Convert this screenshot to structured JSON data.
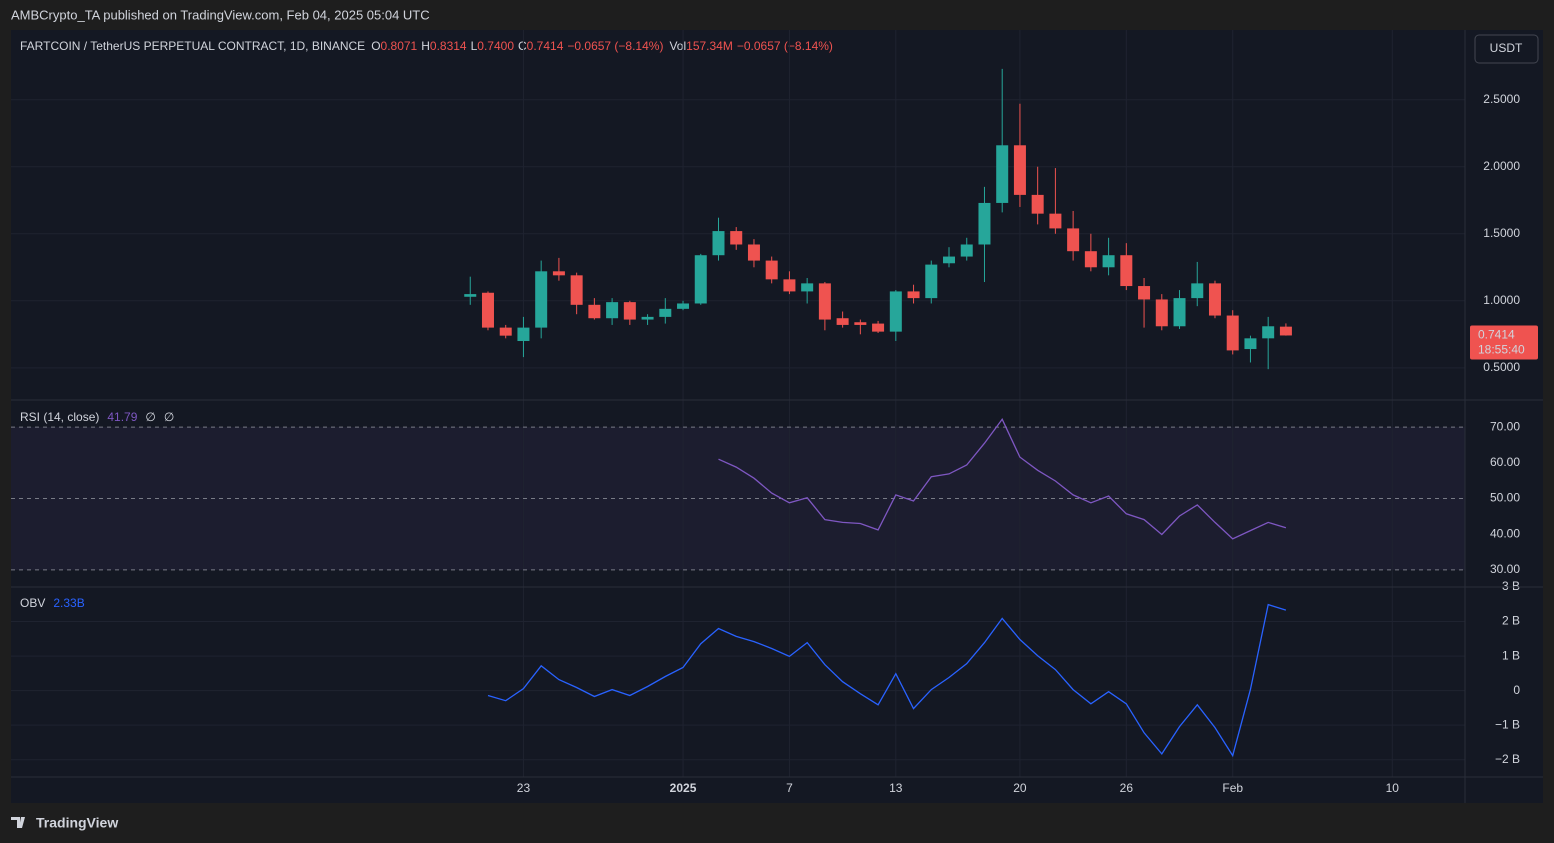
{
  "header": {
    "publisher": "AMBCrypto_TA published on TradingView.com, Feb 04, 2025 05:04 UTC"
  },
  "footer": {
    "brand": "TradingView"
  },
  "currency_button": "USDT",
  "chart_data": [
    {
      "type": "candlestick",
      "symbol": "FARTCOIN / TetherUS PERPETUAL CONTRACT, 1D, BINANCE",
      "ohlc_legend": [
        {
          "label": "O",
          "value": "0.8071"
        },
        {
          "label": "H",
          "value": "0.8314"
        },
        {
          "label": "L",
          "value": "0.7400"
        },
        {
          "label": "C",
          "value": "0.7414"
        }
      ],
      "change": "−0.0657 (−8.14%)",
      "volume_legend": {
        "label": "Vol",
        "value": "157.34M"
      },
      "volume_change": "−0.0657 (−8.14%)",
      "categories": [
        null,
        null,
        null,
        null,
        null,
        null,
        null,
        null,
        null,
        null,
        null,
        null,
        null,
        null,
        null,
        null,
        null,
        null,
        null,
        null,
        null,
        null,
        null,
        null,
        null,
        null,
        null,
        null,
        null,
        null,
        null,
        null,
        null,
        null,
        null,
        null,
        null,
        null,
        null,
        null,
        null,
        null,
        null,
        null,
        null,
        null,
        null
      ],
      "open": [
        1.03,
        1.06,
        0.8,
        0.7,
        0.8,
        1.22,
        1.19,
        0.97,
        0.87,
        0.99,
        0.86,
        0.88,
        0.94,
        0.98,
        1.34,
        1.52,
        1.42,
        1.3,
        1.16,
        1.07,
        1.13,
        0.87,
        0.84,
        0.83,
        0.77,
        1.07,
        1.02,
        1.28,
        1.33,
        1.42,
        1.73,
        2.16,
        1.79,
        1.65,
        1.54,
        1.37,
        1.25,
        1.34,
        1.11,
        1.01,
        0.81,
        1.02,
        1.13,
        0.89,
        0.64,
        0.72,
        0.8071
      ],
      "high": [
        1.18,
        1.07,
        0.82,
        0.88,
        1.3,
        1.32,
        1.21,
        1.02,
        1.02,
        1.0,
        0.9,
        1.02,
        1.0,
        1.35,
        1.62,
        1.55,
        1.46,
        1.33,
        1.22,
        1.17,
        1.14,
        0.92,
        0.86,
        0.85,
        1.08,
        1.12,
        1.3,
        1.4,
        1.47,
        1.85,
        2.73,
        2.47,
        2.0,
        1.99,
        1.67,
        1.5,
        1.47,
        1.43,
        1.17,
        1.05,
        1.08,
        1.29,
        1.15,
        0.93,
        0.74,
        0.88,
        0.8314
      ],
      "low": [
        0.97,
        0.78,
        0.72,
        0.58,
        0.72,
        1.15,
        0.9,
        0.86,
        0.82,
        0.82,
        0.82,
        0.83,
        0.93,
        0.97,
        1.3,
        1.38,
        1.25,
        1.13,
        1.05,
        0.98,
        0.78,
        0.8,
        0.75,
        0.76,
        0.7,
        0.98,
        0.98,
        1.25,
        1.3,
        1.14,
        1.66,
        1.7,
        1.57,
        1.5,
        1.3,
        1.22,
        1.19,
        1.08,
        0.8,
        0.78,
        0.79,
        0.96,
        0.87,
        0.6,
        0.54,
        0.49,
        0.74
      ],
      "close": [
        1.05,
        0.8,
        0.74,
        0.8,
        1.22,
        1.19,
        0.97,
        0.87,
        0.99,
        0.86,
        0.88,
        0.94,
        0.98,
        1.34,
        1.52,
        1.42,
        1.3,
        1.16,
        1.07,
        1.13,
        0.86,
        0.82,
        0.82,
        0.77,
        1.07,
        1.02,
        1.27,
        1.33,
        1.42,
        1.73,
        2.16,
        1.79,
        1.65,
        1.54,
        1.37,
        1.25,
        1.34,
        1.11,
        1.01,
        0.81,
        1.02,
        1.13,
        0.89,
        0.63,
        0.72,
        0.81,
        0.7414
      ],
      "up_color": "#26a69a",
      "down_color": "#ef5350",
      "ylim": [
        0.26,
        3.02
      ],
      "yticks": [
        {
          "value": 0.5,
          "label": "0.5000"
        },
        {
          "value": 1,
          "label": "1.0000"
        },
        {
          "value": 1.5,
          "label": "1.5000"
        },
        {
          "value": 2,
          "label": "2.0000"
        },
        {
          "value": 2.5,
          "label": "2.5000"
        }
      ],
      "last_price_label": "0.7414",
      "countdown": "18:55:40",
      "xlim": [
        -25.9,
        56.1
      ],
      "xticks": [
        {
          "value": 3,
          "label": "23"
        },
        {
          "value": 12,
          "label": "2025"
        },
        {
          "value": 18,
          "label": "7"
        },
        {
          "value": 24,
          "label": "13"
        },
        {
          "value": 31,
          "label": "20"
        },
        {
          "value": 37,
          "label": "26"
        },
        {
          "value": 43,
          "label": "Feb"
        },
        {
          "value": 52,
          "label": "10"
        }
      ],
      "grid": true
    },
    {
      "type": "line",
      "title": "RSI (14, close)",
      "flags": [
        "∅",
        "∅"
      ],
      "color": "#7e57c2",
      "values": [
        null,
        null,
        null,
        null,
        null,
        null,
        null,
        null,
        null,
        null,
        null,
        null,
        null,
        null,
        61.0,
        58.8,
        55.7,
        51.5,
        48.8,
        50.2,
        44.1,
        43.3,
        43.0,
        41.2,
        51.0,
        49.3,
        56.1,
        56.9,
        59.4,
        65.5,
        72.2,
        61.6,
        57.9,
        54.9,
        51.0,
        48.8,
        50.7,
        45.7,
        44.1,
        39.9,
        45.1,
        48.2,
        43.3,
        38.7,
        41.0,
        43.3,
        41.79
      ],
      "ylim": [
        25.2,
        77.6
      ],
      "yticks": [
        {
          "value": 30,
          "label": "30.00"
        },
        {
          "value": 40,
          "label": "40.00"
        },
        {
          "value": 50,
          "label": "50.00"
        },
        {
          "value": 60,
          "label": "60.00"
        },
        {
          "value": 70,
          "label": "70.00"
        }
      ],
      "bands": {
        "lower": 30,
        "middle": 50,
        "upper": 70
      }
    },
    {
      "type": "line",
      "title": "OBV",
      "last_label": "2.33B",
      "color": "#2962ff",
      "values": [
        null,
        -0.14,
        -0.29,
        0.06,
        0.72,
        0.32,
        0.09,
        -0.17,
        0.03,
        -0.14,
        0.12,
        0.41,
        0.67,
        1.36,
        1.8,
        1.57,
        1.42,
        1.22,
        0.99,
        1.39,
        0.75,
        0.26,
        -0.09,
        -0.41,
        0.49,
        -0.52,
        0.03,
        0.38,
        0.78,
        1.39,
        2.09,
        1.48,
        1.01,
        0.61,
        0.03,
        -0.38,
        -0.03,
        -0.38,
        -1.22,
        -1.83,
        -1.04,
        -0.41,
        -1.07,
        -1.88,
        0.03,
        2.49,
        2.33
      ],
      "ylim": [
        -2.5,
        3.0
      ],
      "yticks": [
        {
          "value": -2,
          "label": "−2 B"
        },
        {
          "value": -1,
          "label": "−1 B"
        },
        {
          "value": 0,
          "label": "0"
        },
        {
          "value": 1,
          "label": "1 B"
        },
        {
          "value": 2,
          "label": "2 B"
        },
        {
          "value": 3,
          "label": "3 B"
        }
      ]
    }
  ]
}
